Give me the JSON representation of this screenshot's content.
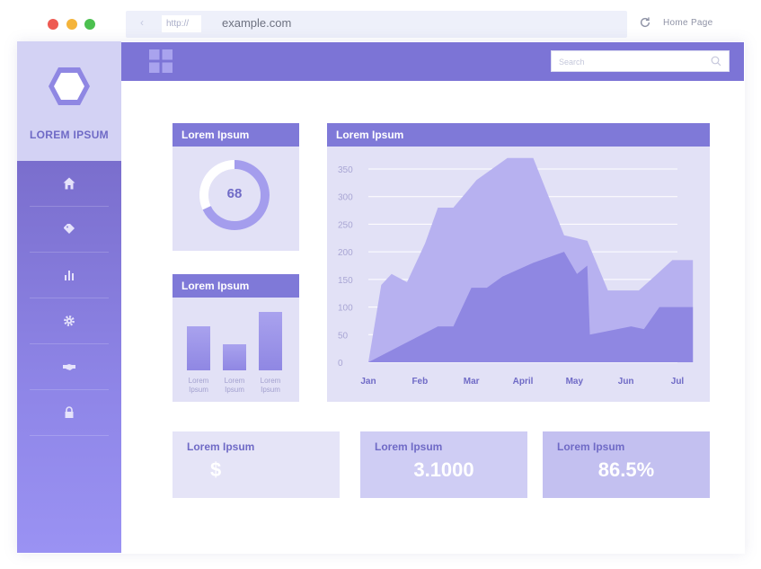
{
  "browser": {
    "url_protocol": "http://",
    "url": "example.com",
    "home_link": "Home Page"
  },
  "sidebar": {
    "brand": "LOREM IPSUM",
    "items": [
      {
        "icon": "home-icon"
      },
      {
        "icon": "tag-icon"
      },
      {
        "icon": "bar-chart-icon"
      },
      {
        "icon": "gear-icon"
      },
      {
        "icon": "handshake-icon"
      },
      {
        "icon": "lock-icon"
      }
    ]
  },
  "header": {
    "search_placeholder": "Search"
  },
  "donut_card": {
    "title": "Lorem Ipsum",
    "value": 68,
    "value_label": "68"
  },
  "bar_card": {
    "title": "Lorem Ipsum",
    "bars": [
      {
        "label": "Lorem Ipsum",
        "value": 0.72
      },
      {
        "label": "Lorem Ipsum",
        "value": 0.42
      },
      {
        "label": "Lorem Ipsum",
        "value": 0.95
      }
    ]
  },
  "area_card": {
    "title": "Lorem Ipsum"
  },
  "chart_data": {
    "type": "area",
    "categories": [
      "Jan",
      "Feb",
      "Mar",
      "April",
      "May",
      "Jun",
      "Jul"
    ],
    "yticks": [
      0,
      50,
      100,
      150,
      200,
      250,
      300,
      350
    ],
    "ylim": [
      0,
      350
    ],
    "grid": true,
    "series": [
      {
        "x": [
          0,
          0.25,
          0.45,
          0.75,
          1.1,
          1.35,
          1.65,
          2.1,
          2.7,
          3.2,
          3.8,
          4.25,
          4.65,
          5.25,
          5.55,
          5.9,
          6.3
        ],
        "y": [
          0,
          140,
          160,
          145,
          215,
          280,
          280,
          330,
          370,
          370,
          230,
          220,
          130,
          130,
          155,
          185,
          185
        ]
      },
      {
        "x": [
          0,
          1.35,
          1.65,
          2.0,
          2.3,
          2.6,
          3.2,
          3.8,
          4.05,
          4.25,
          4.3,
          5.1,
          5.35,
          5.65,
          6.3
        ],
        "y": [
          0,
          65,
          65,
          135,
          135,
          155,
          180,
          200,
          160,
          175,
          50,
          65,
          60,
          100,
          100
        ]
      }
    ]
  },
  "stats": [
    {
      "title": "Lorem Ipsum",
      "value": "$"
    },
    {
      "title": "Lorem Ipsum",
      "value": "3.1000"
    },
    {
      "title": "Lorem Ipsum",
      "value": "86.5%"
    }
  ],
  "colors": {
    "accent": "#7c74d6",
    "series_back": "#b7b1f0",
    "series_front": "#8f87e2",
    "panel_bg": "#e2e1f6"
  }
}
